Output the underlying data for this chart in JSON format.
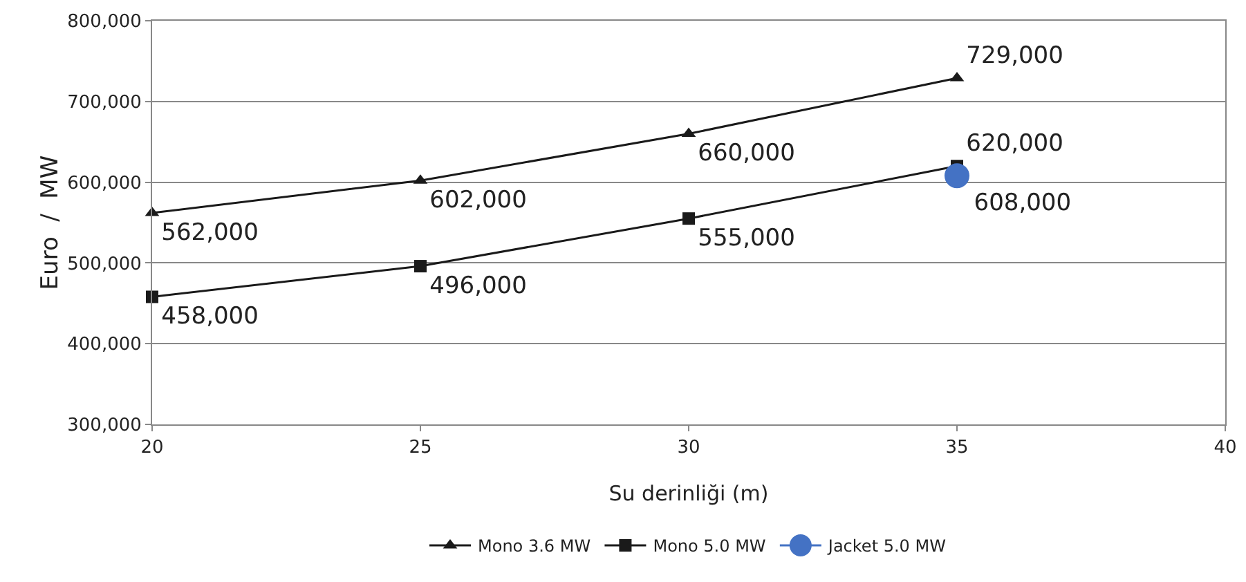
{
  "chart_data": {
    "type": "line",
    "xlabel": "Su derinliği (m)",
    "ylabel": "Euro  /  MW",
    "x": [
      20,
      25,
      30,
      35
    ],
    "series": [
      {
        "name": "Mono 3.6 MW",
        "color": "#1a1a1a",
        "marker": "triangle",
        "values": [
          562000,
          602000,
          660000,
          729000
        ],
        "value_labels": [
          "562,000",
          "602,000",
          "660,000",
          "729,000"
        ]
      },
      {
        "name": "Mono 5.0 MW",
        "color": "#1a1a1a",
        "marker": "square",
        "values": [
          458000,
          496000,
          555000,
          620000
        ],
        "value_labels": [
          "458,000",
          "496,000",
          "555,000",
          "620,000"
        ]
      },
      {
        "name": "Jacket 5.0 MW",
        "color": "#4472c4",
        "marker": "circle",
        "x": [
          35
        ],
        "values": [
          608000
        ],
        "value_labels": [
          "608,000"
        ]
      }
    ],
    "xlim": [
      20,
      40
    ],
    "xticks": [
      20,
      25,
      30,
      35,
      40
    ],
    "ylim": [
      300000,
      800000
    ],
    "yticks": [
      {
        "value": 300000,
        "label": "300,000"
      },
      {
        "value": 400000,
        "label": "400,000"
      },
      {
        "value": 500000,
        "label": "500,000"
      },
      {
        "value": 600000,
        "label": "600,000"
      },
      {
        "value": 700000,
        "label": "700,000"
      },
      {
        "value": 800000,
        "label": "800,000"
      }
    ],
    "grid": "y",
    "legend": "bottom"
  }
}
